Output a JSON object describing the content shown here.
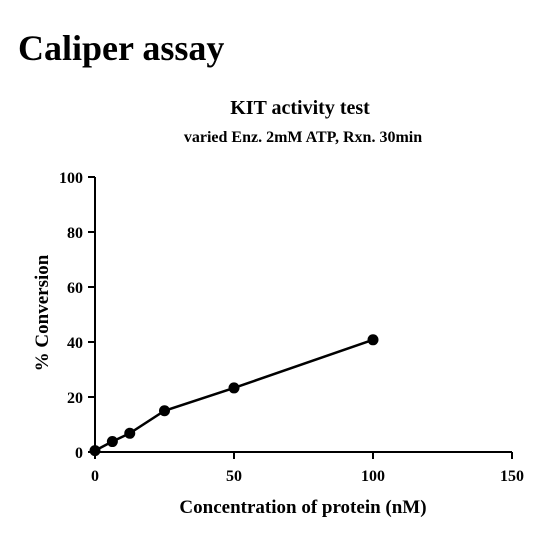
{
  "page": {
    "heading": "Caliper assay"
  },
  "chart_data": {
    "type": "line",
    "title": "KIT activity test",
    "subtitle": "varied Enz. 2mM ATP, Rxn. 30min",
    "xlabel": "Concentration of protein (nM)",
    "ylabel": "% Conversion",
    "xlim": [
      0,
      150
    ],
    "ylim": [
      0,
      100
    ],
    "x_ticks": [
      0,
      50,
      100,
      150
    ],
    "y_ticks": [
      0,
      20,
      40,
      60,
      80,
      100
    ],
    "grid": false,
    "series": [
      {
        "x": [
          0,
          6.25,
          12.5,
          25,
          50,
          100
        ],
        "y": [
          0.5,
          3.8,
          6.8,
          15.0,
          23.3,
          40.8
        ]
      }
    ],
    "colors": {
      "line": "#000000",
      "marker": "#000000",
      "axis": "#000000"
    }
  }
}
